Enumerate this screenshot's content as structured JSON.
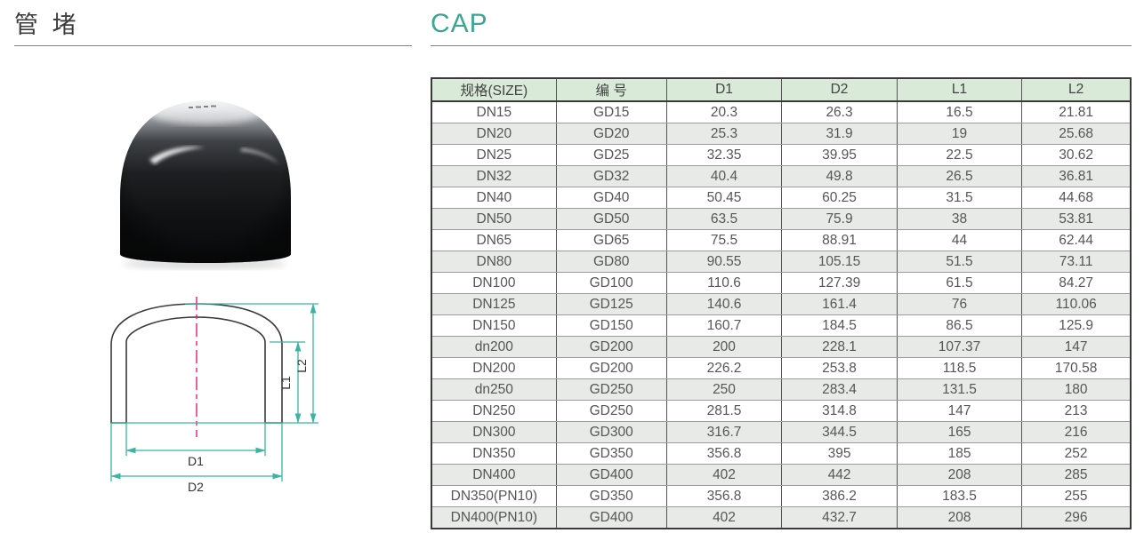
{
  "page": {
    "title_cn": "管 堵",
    "title_en": "CAP",
    "accent_color": "#3BA693",
    "dimension_line_color": "#3BB4A1",
    "centerline_color": "#E81882",
    "header_bg_color": "#D9EAD9",
    "stripe_bg_color": "#E7EAE7"
  },
  "drawing": {
    "labels": {
      "d1": "D1",
      "d2": "D2",
      "l1": "L1",
      "l2": "L2"
    }
  },
  "table": {
    "columns": [
      "规格(SIZE)",
      "编 号",
      "D1",
      "D2",
      "L1",
      "L2"
    ],
    "rows": [
      [
        "DN15",
        "GD15",
        "20.3",
        "26.3",
        "16.5",
        "21.81"
      ],
      [
        "DN20",
        "GD20",
        "25.3",
        "31.9",
        "19",
        "25.68"
      ],
      [
        "DN25",
        "GD25",
        "32.35",
        "39.95",
        "22.5",
        "30.62"
      ],
      [
        "DN32",
        "GD32",
        "40.4",
        "49.8",
        "26.5",
        "36.81"
      ],
      [
        "DN40",
        "GD40",
        "50.45",
        "60.25",
        "31.5",
        "44.68"
      ],
      [
        "DN50",
        "GD50",
        "63.5",
        "75.9",
        "38",
        "53.81"
      ],
      [
        "DN65",
        "GD65",
        "75.5",
        "88.91",
        "44",
        "62.44"
      ],
      [
        "DN80",
        "GD80",
        "90.55",
        "105.15",
        "51.5",
        "73.11"
      ],
      [
        "DN100",
        "GD100",
        "110.6",
        "127.39",
        "61.5",
        "84.27"
      ],
      [
        "DN125",
        "GD125",
        "140.6",
        "161.4",
        "76",
        "110.06"
      ],
      [
        "DN150",
        "GD150",
        "160.7",
        "184.5",
        "86.5",
        "125.9"
      ],
      [
        "dn200",
        "GD200",
        "200",
        "228.1",
        "107.37",
        "147"
      ],
      [
        "DN200",
        "GD200",
        "226.2",
        "253.8",
        "118.5",
        "170.58"
      ],
      [
        "dn250",
        "GD250",
        "250",
        "283.4",
        "131.5",
        "180"
      ],
      [
        "DN250",
        "GD250",
        "281.5",
        "314.8",
        "147",
        "213"
      ],
      [
        "DN300",
        "GD300",
        "316.7",
        "344.5",
        "165",
        "216"
      ],
      [
        "DN350",
        "GD350",
        "356.8",
        "395",
        "185",
        "252"
      ],
      [
        "DN400",
        "GD400",
        "402",
        "442",
        "208",
        "285"
      ],
      [
        "DN350(PN10)",
        "GD350",
        "356.8",
        "386.2",
        "183.5",
        "255"
      ],
      [
        "DN400(PN10)",
        "GD400",
        "402",
        "432.7",
        "208",
        "296"
      ]
    ]
  }
}
